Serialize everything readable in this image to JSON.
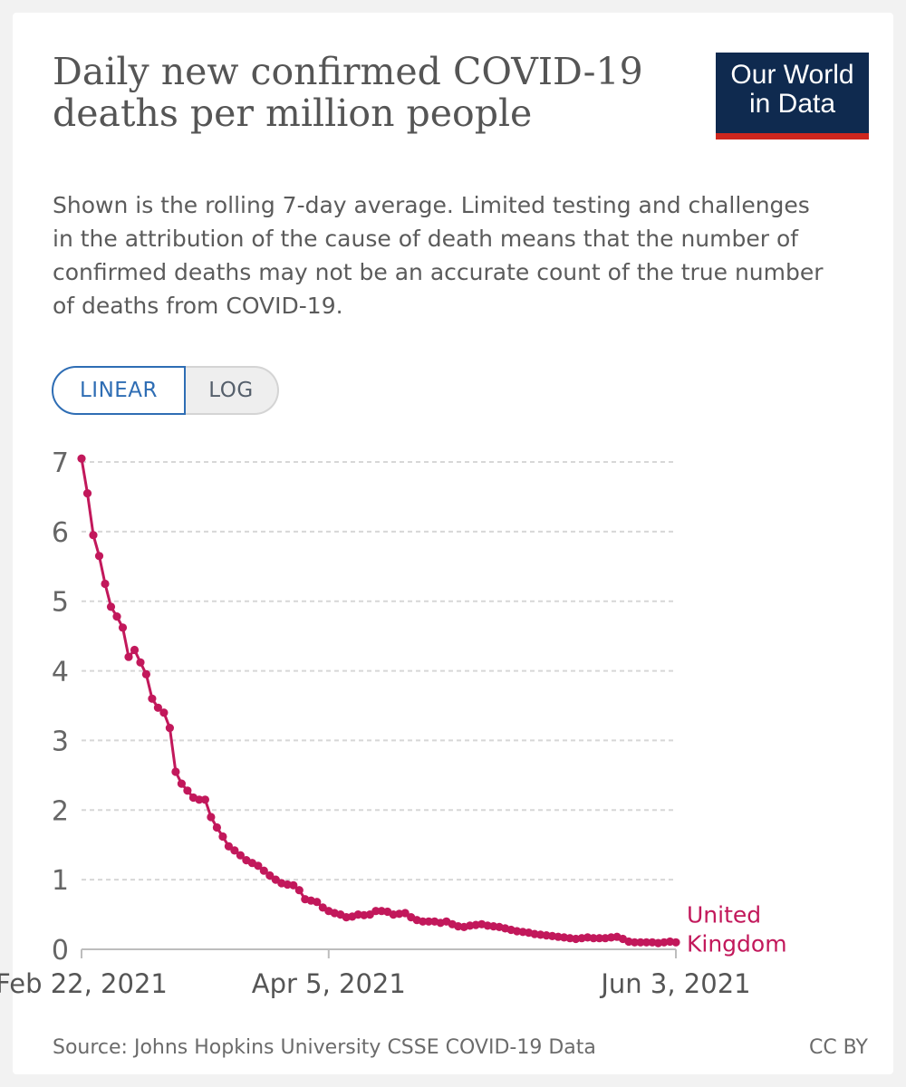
{
  "header": {
    "title": "Daily new confirmed COVID-19 deaths per million people",
    "subtitle": "Shown is the rolling 7-day average. Limited testing and challenges in the attribution of the cause of death means that the number of confirmed deaths may not be an accurate count of the true number of deaths from COVID-19.",
    "logo_line1": "Our World",
    "logo_line2": "in Data"
  },
  "controls": {
    "linear_label": "LINEAR",
    "log_label": "LOG",
    "selected": "LINEAR"
  },
  "footer": {
    "source": "Source: Johns Hopkins University CSSE COVID-19 Data",
    "license": "CC BY"
  },
  "colors": {
    "series": "#c2185b",
    "logo_bg": "#0f2a4f",
    "logo_stripe": "#ce261e",
    "toggle_active": "#2e6db4"
  },
  "chart_data": {
    "type": "line",
    "title": "Daily new confirmed COVID-19 deaths per million people",
    "xlabel": "",
    "ylabel": "",
    "ylim": [
      0,
      7
    ],
    "yticks": [
      0,
      1,
      2,
      3,
      4,
      5,
      6,
      7
    ],
    "xlim": [
      "2021-02-22",
      "2021-06-03"
    ],
    "xtick_labels": [
      {
        "date": "2021-02-22",
        "label": "Feb 22, 2021"
      },
      {
        "date": "2021-04-05",
        "label": "Apr 5, 2021"
      },
      {
        "date": "2021-06-03",
        "label": "Jun 3, 2021"
      }
    ],
    "grid": "horizontal-dashed",
    "series": [
      {
        "name": "United Kingdom",
        "color": "#c2185b",
        "points": [
          [
            "2021-02-22",
            7.05
          ],
          [
            "2021-02-23",
            6.55
          ],
          [
            "2021-02-24",
            5.95
          ],
          [
            "2021-02-25",
            5.65
          ],
          [
            "2021-02-26",
            5.25
          ],
          [
            "2021-02-27",
            4.92
          ],
          [
            "2021-02-28",
            4.78
          ],
          [
            "2021-03-01",
            4.62
          ],
          [
            "2021-03-02",
            4.2
          ],
          [
            "2021-03-03",
            4.3
          ],
          [
            "2021-03-04",
            4.12
          ],
          [
            "2021-03-05",
            3.95
          ],
          [
            "2021-03-06",
            3.6
          ],
          [
            "2021-03-07",
            3.47
          ],
          [
            "2021-03-08",
            3.4
          ],
          [
            "2021-03-09",
            3.18
          ],
          [
            "2021-03-10",
            2.55
          ],
          [
            "2021-03-11",
            2.38
          ],
          [
            "2021-03-12",
            2.28
          ],
          [
            "2021-03-13",
            2.18
          ],
          [
            "2021-03-14",
            2.15
          ],
          [
            "2021-03-15",
            2.15
          ],
          [
            "2021-03-16",
            1.9
          ],
          [
            "2021-03-17",
            1.75
          ],
          [
            "2021-03-18",
            1.62
          ],
          [
            "2021-03-19",
            1.48
          ],
          [
            "2021-03-20",
            1.42
          ],
          [
            "2021-03-21",
            1.35
          ],
          [
            "2021-03-22",
            1.28
          ],
          [
            "2021-03-23",
            1.24
          ],
          [
            "2021-03-24",
            1.2
          ],
          [
            "2021-03-25",
            1.13
          ],
          [
            "2021-03-26",
            1.06
          ],
          [
            "2021-03-27",
            1.0
          ],
          [
            "2021-03-28",
            0.95
          ],
          [
            "2021-03-29",
            0.93
          ],
          [
            "2021-03-30",
            0.92
          ],
          [
            "2021-03-31",
            0.85
          ],
          [
            "2021-04-01",
            0.72
          ],
          [
            "2021-04-02",
            0.7
          ],
          [
            "2021-04-03",
            0.68
          ],
          [
            "2021-04-04",
            0.6
          ],
          [
            "2021-04-05",
            0.55
          ],
          [
            "2021-04-06",
            0.52
          ],
          [
            "2021-04-07",
            0.5
          ],
          [
            "2021-04-08",
            0.46
          ],
          [
            "2021-04-09",
            0.47
          ],
          [
            "2021-04-10",
            0.5
          ],
          [
            "2021-04-11",
            0.49
          ],
          [
            "2021-04-12",
            0.5
          ],
          [
            "2021-04-13",
            0.55
          ],
          [
            "2021-04-14",
            0.55
          ],
          [
            "2021-04-15",
            0.54
          ],
          [
            "2021-04-16",
            0.5
          ],
          [
            "2021-04-17",
            0.51
          ],
          [
            "2021-04-18",
            0.52
          ],
          [
            "2021-04-19",
            0.46
          ],
          [
            "2021-04-20",
            0.42
          ],
          [
            "2021-04-21",
            0.4
          ],
          [
            "2021-04-22",
            0.4
          ],
          [
            "2021-04-23",
            0.4
          ],
          [
            "2021-04-24",
            0.38
          ],
          [
            "2021-04-25",
            0.4
          ],
          [
            "2021-04-26",
            0.36
          ],
          [
            "2021-04-27",
            0.33
          ],
          [
            "2021-04-28",
            0.32
          ],
          [
            "2021-04-29",
            0.34
          ],
          [
            "2021-04-30",
            0.35
          ],
          [
            "2021-05-01",
            0.36
          ],
          [
            "2021-05-02",
            0.34
          ],
          [
            "2021-05-03",
            0.33
          ],
          [
            "2021-05-04",
            0.32
          ],
          [
            "2021-05-05",
            0.3
          ],
          [
            "2021-05-06",
            0.28
          ],
          [
            "2021-05-07",
            0.26
          ],
          [
            "2021-05-08",
            0.25
          ],
          [
            "2021-05-09",
            0.24
          ],
          [
            "2021-05-10",
            0.22
          ],
          [
            "2021-05-11",
            0.21
          ],
          [
            "2021-05-12",
            0.2
          ],
          [
            "2021-05-13",
            0.19
          ],
          [
            "2021-05-14",
            0.18
          ],
          [
            "2021-05-15",
            0.17
          ],
          [
            "2021-05-16",
            0.16
          ],
          [
            "2021-05-17",
            0.15
          ],
          [
            "2021-05-18",
            0.16
          ],
          [
            "2021-05-19",
            0.17
          ],
          [
            "2021-05-20",
            0.16
          ],
          [
            "2021-05-21",
            0.16
          ],
          [
            "2021-05-22",
            0.16
          ],
          [
            "2021-05-23",
            0.17
          ],
          [
            "2021-05-24",
            0.18
          ],
          [
            "2021-05-25",
            0.15
          ],
          [
            "2021-05-26",
            0.11
          ],
          [
            "2021-05-27",
            0.1
          ],
          [
            "2021-05-28",
            0.1
          ],
          [
            "2021-05-29",
            0.1
          ],
          [
            "2021-05-30",
            0.1
          ],
          [
            "2021-05-31",
            0.09
          ],
          [
            "2021-06-01",
            0.1
          ],
          [
            "2021-06-02",
            0.11
          ],
          [
            "2021-06-03",
            0.1
          ]
        ]
      }
    ]
  }
}
